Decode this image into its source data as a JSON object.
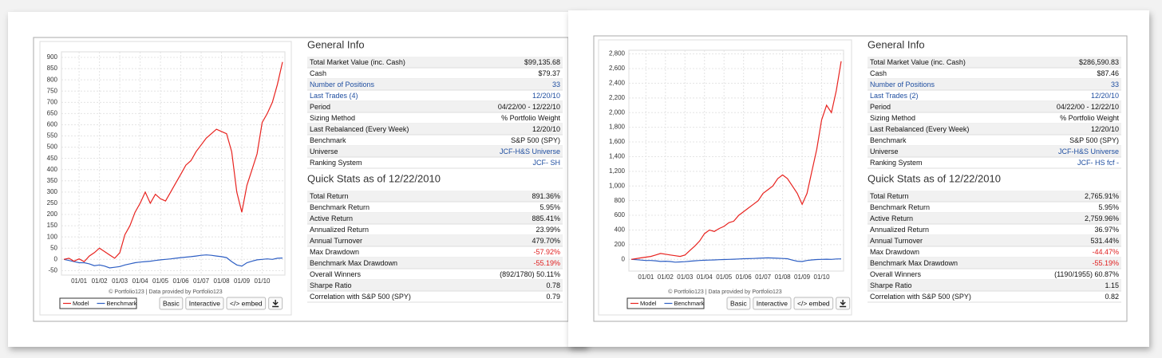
{
  "chart_data": [
    {
      "type": "line",
      "categories": [
        null,
        null,
        null,
        "01/01",
        null,
        null,
        null,
        "01/02",
        null,
        null,
        null,
        "01/03",
        null,
        null,
        null,
        "01/04",
        null,
        null,
        null,
        "01/05",
        null,
        null,
        null,
        "01/06",
        null,
        null,
        null,
        "01/07",
        null,
        null,
        null,
        "01/08",
        null,
        null,
        null,
        "01/09",
        null,
        null,
        null,
        "01/10",
        null,
        null,
        null,
        null
      ],
      "series": [
        {
          "name": "Model",
          "color": "#e8231f",
          "values": [
            0,
            5,
            -8,
            2,
            -10,
            15,
            30,
            50,
            35,
            20,
            5,
            30,
            110,
            150,
            210,
            250,
            300,
            250,
            290,
            270,
            260,
            300,
            340,
            380,
            420,
            440,
            480,
            510,
            540,
            560,
            580,
            570,
            560,
            480,
            300,
            210,
            330,
            400,
            470,
            610,
            650,
            700,
            780,
            880
          ]
        },
        {
          "name": "Benchmark",
          "color": "#2e5fc4",
          "values": [
            0,
            -5,
            -10,
            -15,
            -15,
            -20,
            -28,
            -25,
            -30,
            -38,
            -35,
            -32,
            -25,
            -20,
            -15,
            -12,
            -10,
            -8,
            -5,
            -2,
            0,
            2,
            5,
            8,
            10,
            12,
            15,
            18,
            20,
            18,
            15,
            12,
            8,
            -10,
            -25,
            -30,
            -15,
            -8,
            -2,
            0,
            2,
            0,
            5,
            6
          ]
        }
      ],
      "ylim": [
        -70,
        925
      ],
      "yticks": [
        -50,
        0,
        50,
        100,
        150,
        200,
        250,
        300,
        350,
        400,
        450,
        500,
        550,
        600,
        650,
        700,
        750,
        800,
        850,
        900
      ],
      "grid": true
    },
    {
      "type": "line",
      "categories": [
        null,
        null,
        null,
        "01/01",
        null,
        null,
        null,
        "01/02",
        null,
        null,
        null,
        "01/03",
        null,
        null,
        null,
        "01/04",
        null,
        null,
        null,
        "01/05",
        null,
        null,
        null,
        "01/06",
        null,
        null,
        null,
        "01/07",
        null,
        null,
        null,
        "01/08",
        null,
        null,
        null,
        "01/09",
        null,
        null,
        null,
        "01/10",
        null,
        null,
        null,
        null
      ],
      "series": [
        {
          "name": "Model",
          "color": "#e8231f",
          "values": [
            0,
            10,
            20,
            30,
            40,
            60,
            80,
            70,
            60,
            50,
            40,
            60,
            120,
            180,
            250,
            350,
            400,
            380,
            420,
            450,
            500,
            520,
            600,
            650,
            700,
            750,
            800,
            900,
            950,
            1000,
            1100,
            1150,
            1100,
            1000,
            900,
            750,
            900,
            1200,
            1500,
            1900,
            2100,
            2000,
            2300,
            2700
          ]
        },
        {
          "name": "Benchmark",
          "color": "#2e5fc4",
          "values": [
            0,
            -5,
            -10,
            -15,
            -15,
            -20,
            -28,
            -25,
            -30,
            -38,
            -35,
            -32,
            -25,
            -20,
            -15,
            -12,
            -10,
            -8,
            -5,
            -2,
            0,
            2,
            5,
            8,
            10,
            12,
            15,
            18,
            20,
            18,
            15,
            12,
            8,
            -10,
            -25,
            -30,
            -15,
            -8,
            -2,
            0,
            2,
            0,
            5,
            6
          ]
        }
      ],
      "ylim": [
        -160,
        2850
      ],
      "yticks": [
        0,
        200,
        400,
        600,
        800,
        {
          "value": 1000,
          "label": "1,000"
        },
        {
          "value": 1200,
          "label": "1,200"
        },
        {
          "value": 1400,
          "label": "1,400"
        },
        {
          "value": 1600,
          "label": "1,600"
        },
        {
          "value": 1800,
          "label": "1,800"
        },
        {
          "value": 2000,
          "label": "2,000"
        },
        {
          "value": 2200,
          "label": "2,200"
        },
        {
          "value": 2400,
          "label": "2,400"
        },
        {
          "value": 2600,
          "label": "2,600"
        },
        {
          "value": 2800,
          "label": "2,800"
        }
      ],
      "grid": true
    }
  ],
  "panels": [
    {
      "credit": "© Portfolio123 | Data provided by Portfolio123",
      "buttons": [
        "Basic",
        "Interactive",
        "</> embed"
      ],
      "general_info": {
        "title": "General Info",
        "rows": [
          [
            "Total Market Value (inc. Cash)",
            "$99,135.68"
          ],
          [
            "Cash",
            "$79.37"
          ],
          [
            "Number of Positions",
            "33"
          ],
          [
            "Last Trades (4)",
            "12/20/10"
          ],
          [
            "Period",
            "04/22/00 - 12/22/10"
          ],
          [
            "Sizing Method",
            "% Portfolio Weight"
          ],
          [
            "Last Rebalanced (Every Week)",
            "12/20/10"
          ],
          [
            "Benchmark",
            "S&P 500 (SPY)"
          ],
          [
            "Universe",
            "JCF-H&S Universe"
          ],
          [
            "Ranking System",
            "JCF- SH"
          ]
        ]
      },
      "quick_stats": {
        "title": "Quick Stats as of 12/22/2010",
        "rows": [
          [
            "Total Return",
            "891.36%"
          ],
          [
            "Benchmark Return",
            "5.95%"
          ],
          [
            "Active Return",
            "885.41%"
          ],
          [
            "Annualized Return",
            "23.99%"
          ],
          [
            "Annual Turnover",
            "479.70%"
          ],
          [
            "Max Drawdown",
            "-57.92%"
          ],
          [
            "Benchmark Max Drawdown",
            "-55.19%"
          ],
          [
            "Overall Winners",
            "(892/1780) 50.11%"
          ],
          [
            "Sharpe Ratio",
            "0.78"
          ],
          [
            "Correlation with S&P 500 (SPY)",
            "0.79"
          ]
        ]
      }
    },
    {
      "credit": "© Portfolio123 | Data provided by Portfolio123",
      "buttons": [
        "Basic",
        "Interactive",
        "</> embed"
      ],
      "general_info": {
        "title": "General Info",
        "rows": [
          [
            "Total Market Value (inc. Cash)",
            "$286,590.83"
          ],
          [
            "Cash",
            "$87.46"
          ],
          [
            "Number of Positions",
            "33"
          ],
          [
            "Last Trades (2)",
            "12/20/10"
          ],
          [
            "Period",
            "04/22/00 - 12/22/10"
          ],
          [
            "Sizing Method",
            "% Portfolio Weight"
          ],
          [
            "Last Rebalanced (Every Week)",
            "12/20/10"
          ],
          [
            "Benchmark",
            "S&P 500 (SPY)"
          ],
          [
            "Universe",
            "JCF-H&S Universe"
          ],
          [
            "Ranking System",
            "JCF- HS fcf -"
          ]
        ]
      },
      "quick_stats": {
        "title": "Quick Stats as of 12/22/2010",
        "rows": [
          [
            "Total Return",
            "2,765.91%"
          ],
          [
            "Benchmark Return",
            "5.95%"
          ],
          [
            "Active Return",
            "2,759.96%"
          ],
          [
            "Annualized Return",
            "36.97%"
          ],
          [
            "Annual Turnover",
            "531.44%"
          ],
          [
            "Max Drawdown",
            "-44.47%"
          ],
          [
            "Benchmark Max Drawdown",
            "-55.19%"
          ],
          [
            "Overall Winners",
            "(1190/1955) 60.87%"
          ],
          [
            "Sharpe Ratio",
            "1.15"
          ],
          [
            "Correlation with S&P 500 (SPY)",
            "0.82"
          ]
        ]
      }
    }
  ]
}
